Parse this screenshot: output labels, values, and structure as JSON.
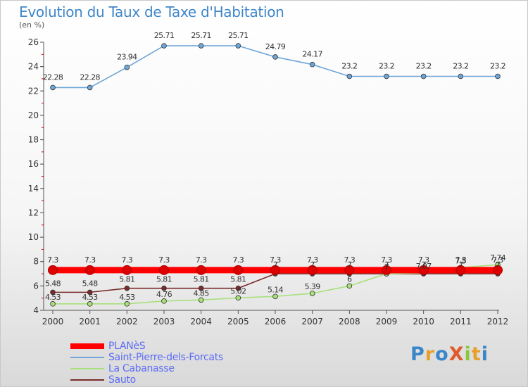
{
  "title": "Evolution du Taux de Taxe d'Habitation",
  "subtitle": "(en %)",
  "logo": {
    "text": "ProXiti",
    "letters": [
      {
        "ch": "P",
        "color": "#3a86c8"
      },
      {
        "ch": "r",
        "color": "#e8a02c"
      },
      {
        "ch": "o",
        "color": "#3a86c8"
      },
      {
        "ch": "X",
        "color": "#e05a2c"
      },
      {
        "ch": "i",
        "color": "#8cc63e"
      },
      {
        "ch": "t",
        "color": "#e8a02c"
      },
      {
        "ch": "i",
        "color": "#3a86c8"
      }
    ]
  },
  "chart_data": {
    "type": "line",
    "title": "Evolution du Taux de Taxe d'Habitation",
    "subtitle": "(en %)",
    "x": [
      2000,
      2001,
      2002,
      2003,
      2004,
      2005,
      2006,
      2007,
      2008,
      2009,
      2010,
      2011,
      2012
    ],
    "ylim": [
      4,
      26
    ],
    "yticks": [
      4,
      6,
      8,
      10,
      12,
      14,
      16,
      18,
      20,
      22,
      24,
      26
    ],
    "grid": false,
    "legend_position": "bottom-left",
    "series": [
      {
        "name": "PLANèS",
        "color": "#ff0000",
        "values": [
          7.3,
          7.3,
          7.3,
          7.3,
          7.3,
          7.3,
          7.3,
          7.3,
          7.3,
          7.3,
          7.3,
          7.3,
          7.3
        ],
        "labels": [
          "7.3",
          "7.3",
          "7.3",
          "7.3",
          "7.3",
          "7.3",
          "7.3",
          "7.3",
          "7.3",
          "7.3",
          "7.3",
          "7.3",
          "7.3"
        ]
      },
      {
        "name": "Saint-Pierre-dels-Forcats",
        "color": "#6ea6d8",
        "values": [
          22.28,
          22.28,
          23.94,
          25.71,
          25.71,
          25.71,
          24.79,
          24.17,
          23.2,
          23.2,
          23.2,
          23.2,
          23.2
        ],
        "labels": [
          "22.28",
          "22.28",
          "23.94",
          "25.71",
          "25.71",
          "25.71",
          "24.79",
          "24.17",
          "23.2",
          "23.2",
          "23.2",
          "23.2",
          "23.2"
        ]
      },
      {
        "name": "La Cabanasse",
        "color": "#a8e07a",
        "values": [
          4.53,
          4.53,
          4.53,
          4.76,
          4.85,
          5.02,
          5.14,
          5.39,
          6,
          7,
          7.07,
          7.5,
          7.74
        ],
        "labels": [
          "4.53",
          "4.53",
          "4.53",
          "4.76",
          "4.85",
          "5.02",
          "5.14",
          "5.39",
          "6",
          "7",
          "7.07",
          "7.5",
          "7.74"
        ]
      },
      {
        "name": "Sauto",
        "color": "#7a2a2a",
        "values": [
          5.48,
          5.48,
          5.81,
          5.81,
          5.81,
          5.81,
          7,
          7,
          7,
          7,
          7,
          7,
          7
        ],
        "labels": [
          "5.48",
          "5.48",
          "5.81",
          "5.81",
          "5.81",
          "5.81",
          "7",
          "7",
          "7",
          "7",
          "7",
          "7",
          "7"
        ]
      }
    ]
  }
}
